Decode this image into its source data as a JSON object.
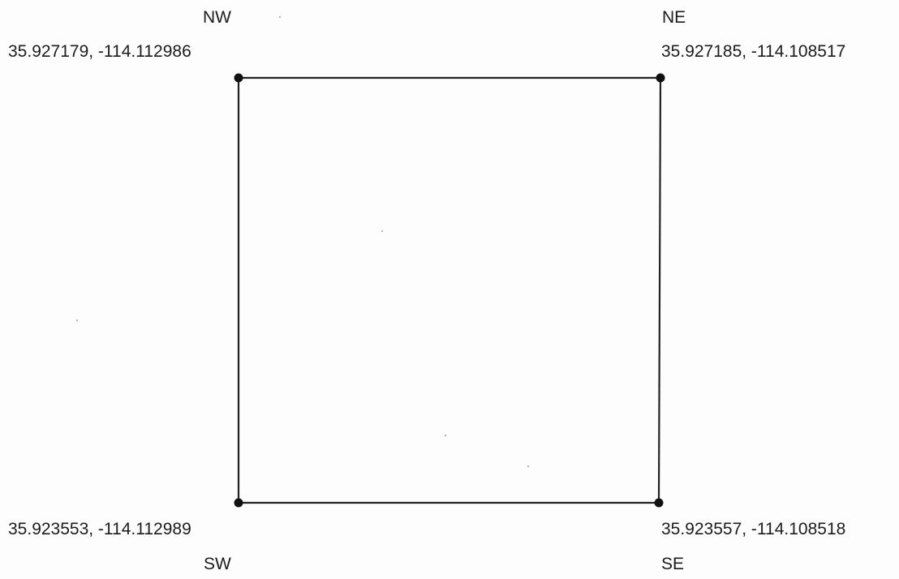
{
  "corners": {
    "nw": {
      "label": "NW",
      "coords": "35.927179, -114.112986"
    },
    "ne": {
      "label": "NE",
      "coords": "35.927185, -114.108517"
    },
    "sw": {
      "label": "SW",
      "coords": "35.923553, -114.112989"
    },
    "se": {
      "label": "SE",
      "coords": "35.923557, -114.108518"
    }
  },
  "colors": {
    "line": "#222222",
    "point": "#111111",
    "text": "#1c1c1c"
  }
}
